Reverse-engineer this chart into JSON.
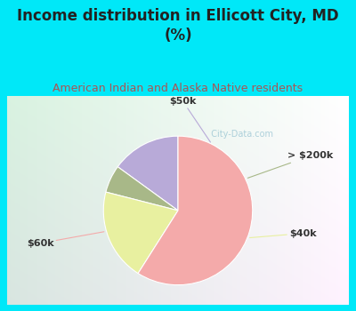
{
  "title": "Income distribution in Ellicott City, MD\n(%)",
  "subtitle": "American Indian and Alaska Native residents",
  "slices": [
    {
      "label": "$50k",
      "value": 15,
      "color": "#b8aad8"
    },
    {
      "label": "> $200k",
      "value": 6,
      "color": "#a8b888"
    },
    {
      "label": "$40k",
      "value": 20,
      "color": "#e8f0a0"
    },
    {
      "label": "$60k",
      "value": 59,
      "color": "#f4aaaa"
    }
  ],
  "startangle": 90,
  "bg_cyan": "#00e8f8",
  "title_color": "#222222",
  "subtitle_color": "#aa5555",
  "label_color": "#333333",
  "watermark": "City-Data.com"
}
